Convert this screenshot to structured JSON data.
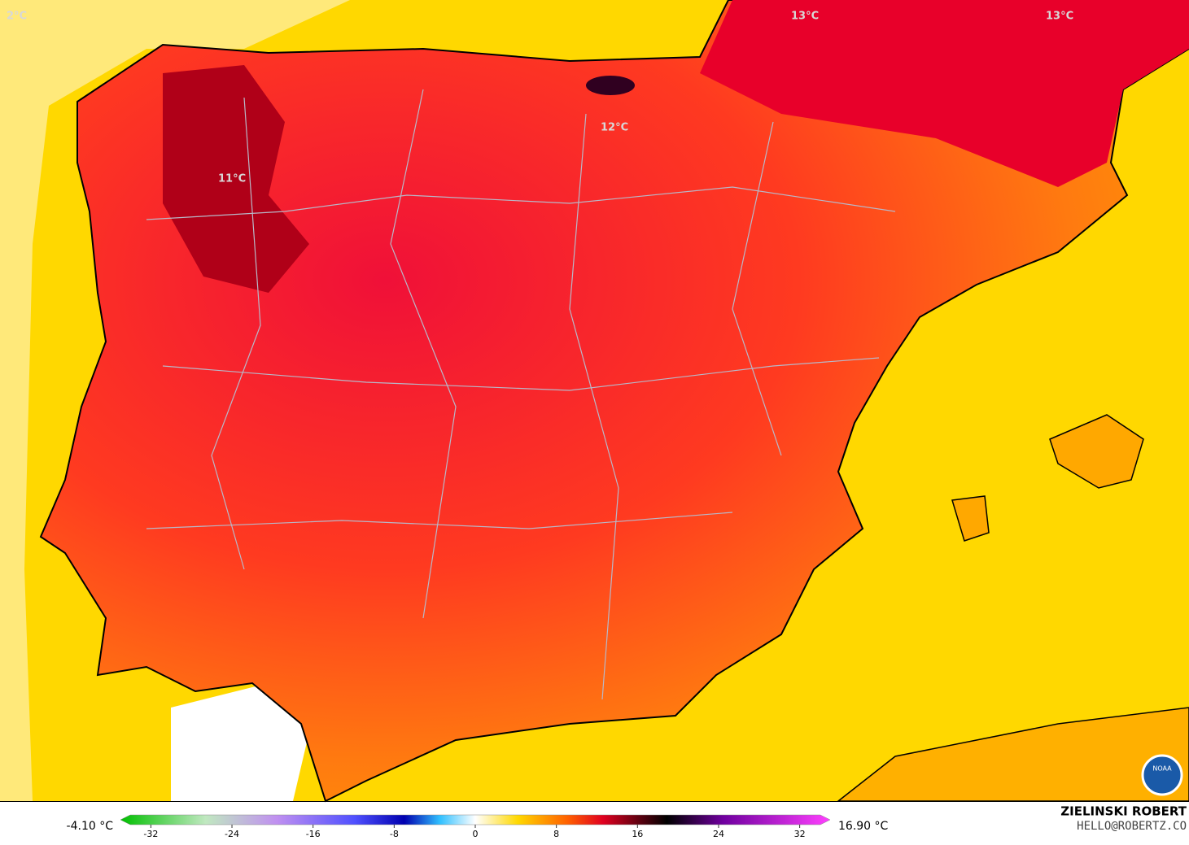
{
  "map_labels": [
    "2°C",
    "13°C",
    "13°C",
    "12°C",
    "11°C"
  ],
  "legend": {
    "min_label": "-4.10 °C",
    "max_label": "16.90 °C",
    "range": [
      -35,
      35
    ],
    "ticks": [
      -32,
      -24,
      -16,
      -8,
      0,
      8,
      16,
      24,
      32
    ]
  },
  "credit": {
    "author": "ZIELINSKI ROBERT",
    "contact": "HELLO@ROBERTZ.CO",
    "logo": "NOAA"
  }
}
